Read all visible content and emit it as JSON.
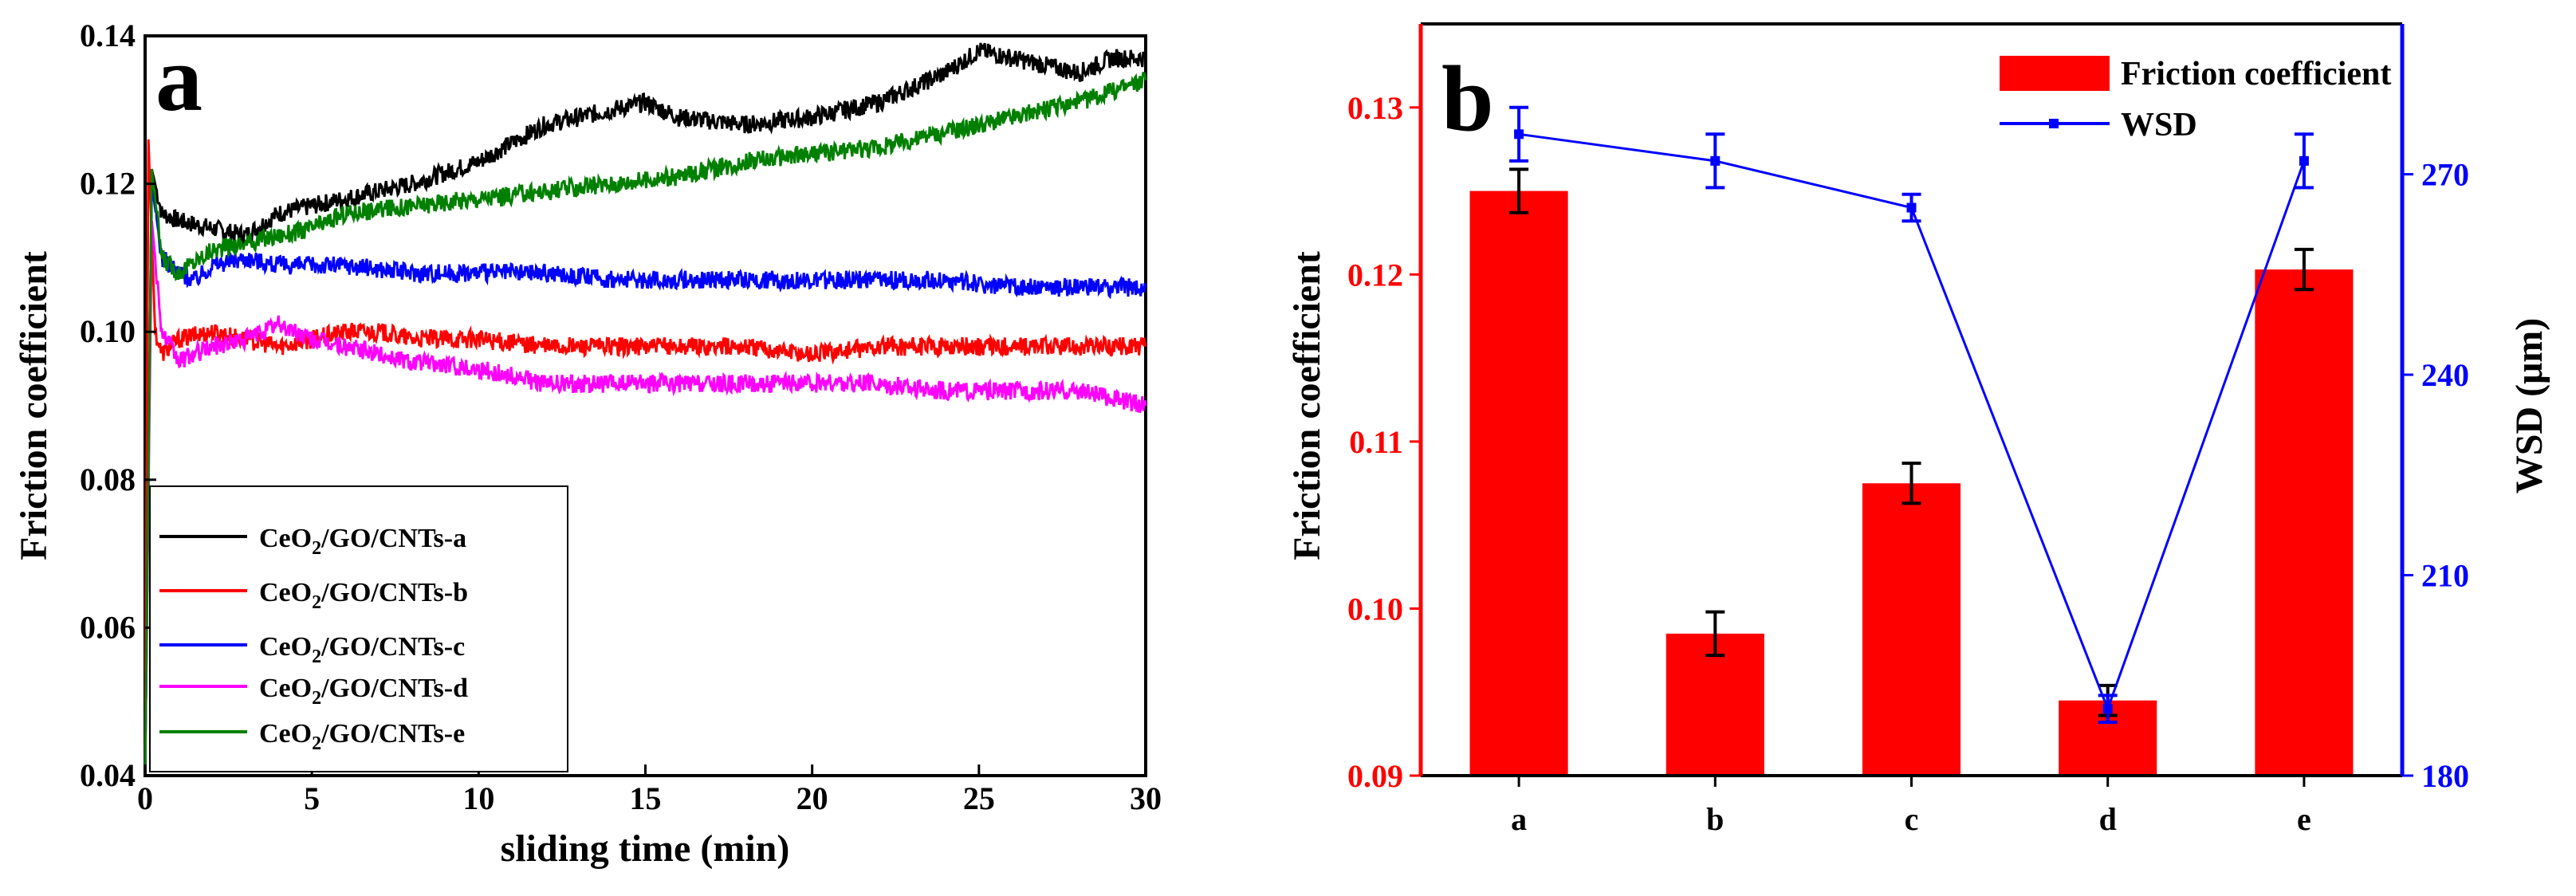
{
  "chart_data": [
    {
      "type": "line",
      "panel_label": "a",
      "xlabel": "sliding time (min)",
      "ylabel": "Friction coefficient",
      "xlim": [
        0,
        30
      ],
      "ylim": [
        0.04,
        0.14
      ],
      "xticks": [
        "0",
        "5",
        "10",
        "15",
        "20",
        "25",
        "30"
      ],
      "yticks": [
        "0.04",
        "0.06",
        "0.08",
        "0.10",
        "0.12",
        "0.14"
      ],
      "legend_position": "bottom-left",
      "series": [
        {
          "name": "CeO2/GO/CNTs-a",
          "name_main": "CeO",
          "name_sub": "2",
          "name_rest": "/GO/CNTs-a",
          "color": "#000000",
          "x": [
            0,
            0.2,
            0.5,
            1,
            2,
            3,
            4,
            5,
            6,
            7,
            8,
            10,
            12,
            14,
            15,
            16,
            18,
            20,
            22,
            24,
            25,
            26,
            27,
            28,
            29,
            30
          ],
          "y": [
            0.04,
            0.122,
            0.116,
            0.115,
            0.114,
            0.113,
            0.116,
            0.117,
            0.118,
            0.119,
            0.12,
            0.123,
            0.128,
            0.13,
            0.131,
            0.129,
            0.128,
            0.129,
            0.131,
            0.135,
            0.138,
            0.137,
            0.136,
            0.135,
            0.137,
            0.137
          ]
        },
        {
          "name": "CeO2/GO/CNTs-b",
          "name_main": "CeO",
          "name_sub": "2",
          "name_rest": "/GO/CNTs-b",
          "color": "#ff0000",
          "x": [
            0,
            0.1,
            0.3,
            0.5,
            1,
            2,
            3,
            4,
            5,
            6,
            7,
            8,
            10,
            12,
            14,
            16,
            18,
            20,
            22,
            24,
            26,
            28,
            30
          ],
          "y": [
            0.04,
            0.126,
            0.1,
            0.097,
            0.099,
            0.1,
            0.099,
            0.098,
            0.099,
            0.1,
            0.1,
            0.099,
            0.099,
            0.098,
            0.098,
            0.098,
            0.098,
            0.097,
            0.098,
            0.098,
            0.098,
            0.098,
            0.098
          ]
        },
        {
          "name": "CeO2/GO/CNTs-c",
          "name_main": "CeO",
          "name_sub": "2",
          "name_rest": "/GO/CNTs-c",
          "color": "#0000ff",
          "x": [
            0,
            0.2,
            0.5,
            1,
            1.5,
            2,
            3,
            4,
            5,
            6,
            8,
            10,
            12,
            14,
            16,
            18,
            20,
            22,
            24,
            26,
            28,
            30
          ],
          "y": [
            0.04,
            0.12,
            0.11,
            0.108,
            0.107,
            0.109,
            0.11,
            0.109,
            0.109,
            0.109,
            0.108,
            0.108,
            0.108,
            0.107,
            0.107,
            0.107,
            0.107,
            0.107,
            0.107,
            0.106,
            0.106,
            0.106
          ]
        },
        {
          "name": "CeO2/GO/CNTs-d",
          "name_main": "CeO",
          "name_sub": "2",
          "name_rest": "/GO/CNTs-d",
          "color": "#ff00ff",
          "x": [
            0,
            0.2,
            0.5,
            1,
            2,
            3,
            4,
            5,
            6,
            7,
            8,
            10,
            12,
            14,
            16,
            18,
            20,
            22,
            24,
            26,
            28,
            30
          ],
          "y": [
            0.04,
            0.115,
            0.1,
            0.096,
            0.098,
            0.099,
            0.101,
            0.099,
            0.098,
            0.097,
            0.096,
            0.095,
            0.093,
            0.093,
            0.093,
            0.093,
            0.093,
            0.093,
            0.092,
            0.092,
            0.092,
            0.09
          ]
        },
        {
          "name": "CeO2/GO/CNTs-e",
          "name_main": "CeO",
          "name_sub": "2",
          "name_rest": "/GO/CNTs-e",
          "color": "#008000",
          "x": [
            0,
            0.2,
            0.5,
            1,
            2,
            3,
            4,
            5,
            6,
            8,
            10,
            12,
            14,
            16,
            18,
            20,
            22,
            24,
            26,
            28,
            30
          ],
          "y": [
            0.04,
            0.122,
            0.11,
            0.108,
            0.111,
            0.112,
            0.113,
            0.114,
            0.116,
            0.117,
            0.118,
            0.119,
            0.12,
            0.121,
            0.123,
            0.124,
            0.125,
            0.127,
            0.129,
            0.131,
            0.134
          ]
        }
      ]
    },
    {
      "type": "bar",
      "panel_label": "b",
      "categories": [
        "a",
        "b",
        "c",
        "d",
        "e"
      ],
      "ylabel": "Friction coefficient",
      "ylabel_right": "WSD (μm)",
      "ylim": [
        0.09,
        0.135
      ],
      "yticks": [
        "0.09",
        "0.10",
        "0.11",
        "0.12",
        "0.13"
      ],
      "ylim_right": [
        180,
        292.5
      ],
      "yticks_right": [
        "180",
        "210",
        "240",
        "270"
      ],
      "legend_position": "top-right",
      "series": [
        {
          "name": "Friction coefficient",
          "color": "#ff0000",
          "axis": "left",
          "values": [
            0.125,
            0.0985,
            0.1075,
            0.0945,
            0.1203
          ],
          "errors": [
            0.0013,
            0.0013,
            0.0012,
            0.0009,
            0.0012
          ]
        },
        {
          "name": "WSD",
          "color": "#0000ff",
          "axis": "right",
          "values": [
            276,
            272,
            265,
            190,
            272
          ],
          "errors": [
            4,
            4,
            2,
            2,
            4
          ]
        }
      ]
    }
  ]
}
